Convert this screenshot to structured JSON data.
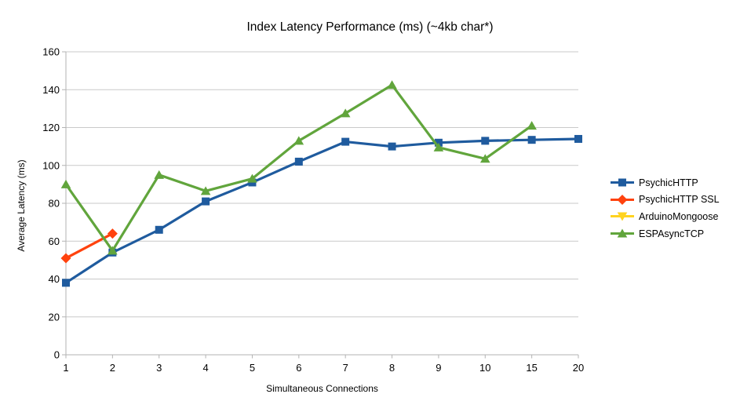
{
  "page": {
    "background": "#ffffff"
  },
  "chart_data": {
    "type": "line",
    "title": "Index Latency Performance (ms) (~4kb char*)",
    "xlabel": "Simultaneous Connections",
    "ylabel": "Average Latency (ms)",
    "categories": [
      "1",
      "2",
      "3",
      "4",
      "5",
      "6",
      "7",
      "8",
      "9",
      "10",
      "15",
      "20"
    ],
    "ylim": [
      0,
      160
    ],
    "yticks": [
      0,
      20,
      40,
      60,
      80,
      100,
      120,
      140,
      160
    ],
    "grid": true,
    "legend_position": "right",
    "grid_color": "#c9c9c9",
    "axis_color": "#b3b3b3",
    "text_color": "#000000",
    "series": [
      {
        "name": "PsychicHTTP",
        "color": "#1f5b9e",
        "marker": "square",
        "values": [
          38,
          54,
          66,
          81,
          91,
          102,
          112.5,
          110,
          112,
          113,
          113.5,
          114
        ]
      },
      {
        "name": "PsychicHTTP SSL",
        "color": "#ff420e",
        "marker": "diamond",
        "values": [
          51,
          64,
          null,
          null,
          null,
          null,
          null,
          null,
          null,
          null,
          null,
          null
        ]
      },
      {
        "name": "ArduinoMongoose",
        "color": "#ffd320",
        "marker": "triangle-down",
        "values": [
          null,
          null,
          null,
          null,
          null,
          null,
          null,
          null,
          null,
          null,
          null,
          null
        ]
      },
      {
        "name": "ESPAsyncTCP",
        "color": "#61a53c",
        "marker": "triangle-up",
        "values": [
          90,
          55,
          95,
          86.5,
          93,
          113,
          127.5,
          142.5,
          109.5,
          103.5,
          121,
          null
        ]
      }
    ]
  }
}
